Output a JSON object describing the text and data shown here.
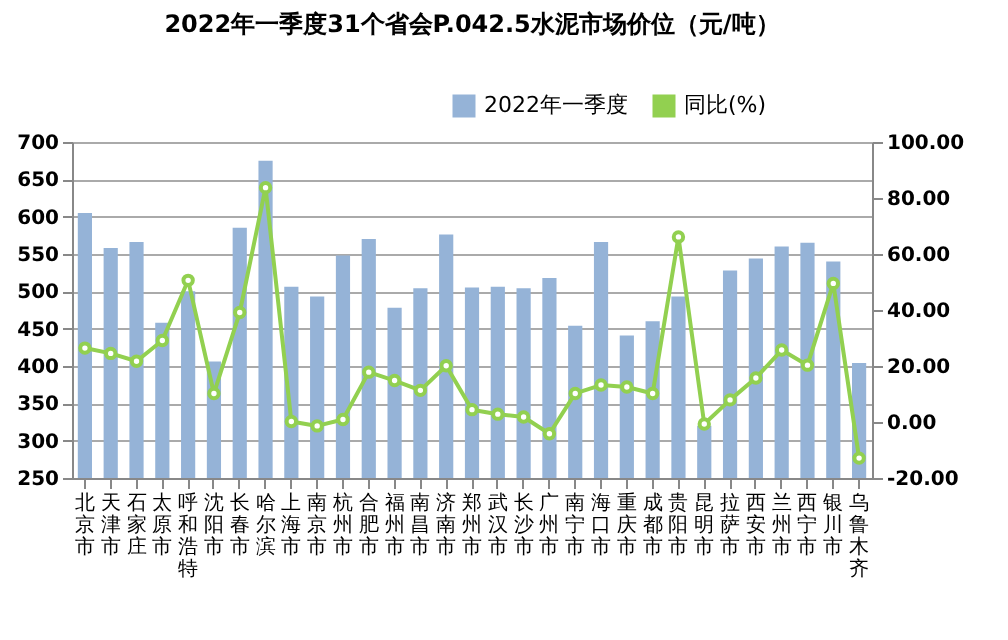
{
  "chart_data": {
    "type": "bar",
    "title": "2022年一季度31个省会P.042.5水泥市场价位（元/吨）",
    "categories": [
      "北京市",
      "天津市",
      "石家庄",
      "太原市",
      "呼和浩特",
      "沈阳市",
      "长春市",
      "哈尔滨",
      "上海市",
      "南京市",
      "杭州市",
      "合肥市",
      "福州市",
      "南昌市",
      "济南市",
      "郑州市",
      "武汉市",
      "长沙市",
      "广州市",
      "南宁市",
      "海口市",
      "重庆市",
      "成都市",
      "贵阳市",
      "昆明市",
      "拉萨市",
      "西安市",
      "兰州市",
      "西宁市",
      "银川市",
      "乌鲁木齐"
    ],
    "series": [
      {
        "name": "2022年一季度",
        "color": "#95b3d7",
        "values": [
          605,
          558,
          566,
          458,
          500,
          406,
          585,
          675,
          506,
          493,
          548,
          570,
          478,
          504,
          576,
          505,
          506,
          504,
          518,
          454,
          566,
          441,
          460,
          493,
          320,
          528,
          544,
          560,
          565,
          540,
          404
        ]
      },
      {
        "name": "同比(%)",
        "type": "line",
        "axis": "y2",
        "color": "#92d050",
        "values": [
          26.4,
          24.5,
          21.7,
          29.1,
          50.6,
          10.2,
          39.1,
          83.7,
          0.2,
          -1.4,
          0.9,
          17.8,
          14.8,
          11.3,
          20.1,
          4.4,
          2.8,
          1.8,
          -4.2,
          10.2,
          13.2,
          12.5,
          10.2,
          66.1,
          -0.7,
          7.9,
          15.7,
          25.7,
          20.3,
          49.5,
          -12.9
        ]
      }
    ],
    "ylim": [
      250,
      700
    ],
    "yticks": [
      250,
      300,
      350,
      400,
      450,
      500,
      550,
      600,
      650,
      700
    ],
    "y2lim": [
      -20,
      100
    ],
    "y2ticks": [
      {
        "value": -20,
        "label": "-20.00"
      },
      {
        "value": 0,
        "label": "0.00"
      },
      {
        "value": 20,
        "label": "20.00"
      },
      {
        "value": 40,
        "label": "40.00"
      },
      {
        "value": 60,
        "label": "60.00"
      },
      {
        "value": 80,
        "label": "80.00"
      },
      {
        "value": 100,
        "label": "100.00"
      }
    ],
    "grid": "y",
    "legend": "top right",
    "marker": "circle",
    "line_style": "solid"
  }
}
